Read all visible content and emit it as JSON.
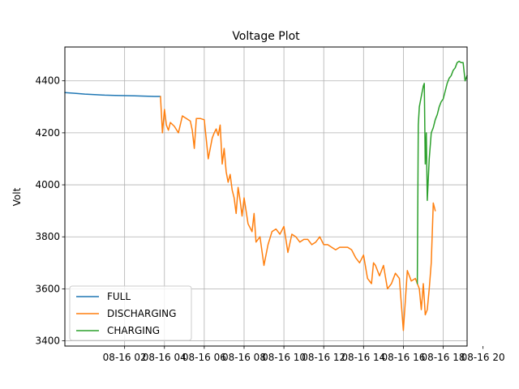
{
  "chart_data": {
    "type": "line",
    "title": "Voltage Plot",
    "xlabel": "",
    "ylabel": "Volt",
    "ylim": [
      3380,
      4530
    ],
    "yticks": [
      3400,
      3600,
      3800,
      4000,
      4200,
      4400
    ],
    "xlim": [
      -1.0,
      19.2
    ],
    "xticks": [
      2,
      4,
      6,
      8,
      10,
      12,
      14,
      16,
      18,
      20
    ],
    "xtick_labels": [
      "08-16 02",
      "08-16 04",
      "08-16 06",
      "08-16 08",
      "08-16 10",
      "08-16 12",
      "08-16 14",
      "08-16 16",
      "08-16 18",
      "08-16 20"
    ],
    "grid": true,
    "legend_position": "lower-left",
    "series": [
      {
        "name": "FULL",
        "color": "#1f77b4",
        "x": [
          -1.0,
          -0.5,
          0.0,
          0.5,
          1.0,
          1.5,
          2.0,
          2.5,
          3.0,
          3.5,
          3.8
        ],
        "y": [
          4355,
          4352,
          4349,
          4347,
          4345,
          4344,
          4343,
          4342,
          4341,
          4340,
          4340
        ]
      },
      {
        "name": "DISCHARGING",
        "color": "#ff7f0e",
        "x": [
          3.8,
          3.9,
          4.0,
          4.1,
          4.2,
          4.3,
          4.5,
          4.7,
          4.9,
          5.0,
          5.3,
          5.4,
          5.5,
          5.6,
          5.8,
          6.0,
          6.2,
          6.4,
          6.5,
          6.6,
          6.7,
          6.8,
          6.9,
          7.0,
          7.1,
          7.2,
          7.3,
          7.4,
          7.5,
          7.6,
          7.7,
          7.8,
          7.9,
          8.0,
          8.2,
          8.4,
          8.5,
          8.6,
          8.8,
          9.0,
          9.2,
          9.4,
          9.6,
          9.8,
          10.0,
          10.2,
          10.4,
          10.6,
          10.8,
          11.0,
          11.2,
          11.4,
          11.6,
          11.8,
          12.0,
          12.2,
          12.4,
          12.6,
          12.8,
          13.0,
          13.2,
          13.4,
          13.6,
          13.8,
          14.0,
          14.2,
          14.4,
          14.5,
          14.6,
          14.8,
          15.0,
          15.2,
          15.4,
          15.6,
          15.8,
          16.0,
          16.2,
          16.4,
          16.6,
          16.8,
          16.9,
          17.0,
          17.1,
          17.2,
          17.3,
          17.4,
          17.5,
          17.6
        ],
        "y": [
          4340,
          4200,
          4290,
          4230,
          4210,
          4240,
          4225,
          4200,
          4265,
          4260,
          4245,
          4210,
          4140,
          4255,
          4255,
          4250,
          4100,
          4180,
          4200,
          4215,
          4190,
          4230,
          4080,
          4140,
          4050,
          4010,
          4040,
          3980,
          3950,
          3890,
          3990,
          3940,
          3880,
          3950,
          3850,
          3820,
          3890,
          3780,
          3800,
          3690,
          3770,
          3820,
          3830,
          3810,
          3840,
          3740,
          3810,
          3800,
          3780,
          3790,
          3790,
          3770,
          3780,
          3800,
          3770,
          3770,
          3760,
          3750,
          3760,
          3760,
          3760,
          3750,
          3720,
          3700,
          3730,
          3640,
          3620,
          3700,
          3690,
          3650,
          3690,
          3600,
          3620,
          3660,
          3640,
          3440,
          3670,
          3630,
          3640,
          3600,
          3520,
          3620,
          3500,
          3520,
          3600,
          3700,
          3930,
          3900
        ]
      },
      {
        "name": "CHARGING",
        "color": "#2ca02c",
        "x": [
          16.7,
          16.75,
          16.8,
          16.9,
          17.0,
          17.05,
          17.1,
          17.15,
          17.2,
          17.3,
          17.4,
          17.5,
          17.6,
          17.7,
          17.8,
          17.9,
          18.0,
          18.1,
          18.2,
          18.3,
          18.4,
          18.5,
          18.6,
          18.7,
          18.8,
          18.9,
          19.0,
          19.1,
          19.2
        ],
        "y": [
          3620,
          4230,
          4300,
          4340,
          4380,
          4390,
          4080,
          4200,
          3940,
          4100,
          4200,
          4220,
          4250,
          4270,
          4300,
          4320,
          4330,
          4360,
          4390,
          4410,
          4420,
          4440,
          4450,
          4470,
          4475,
          4470,
          4470,
          4400,
          4420
        ]
      }
    ]
  }
}
